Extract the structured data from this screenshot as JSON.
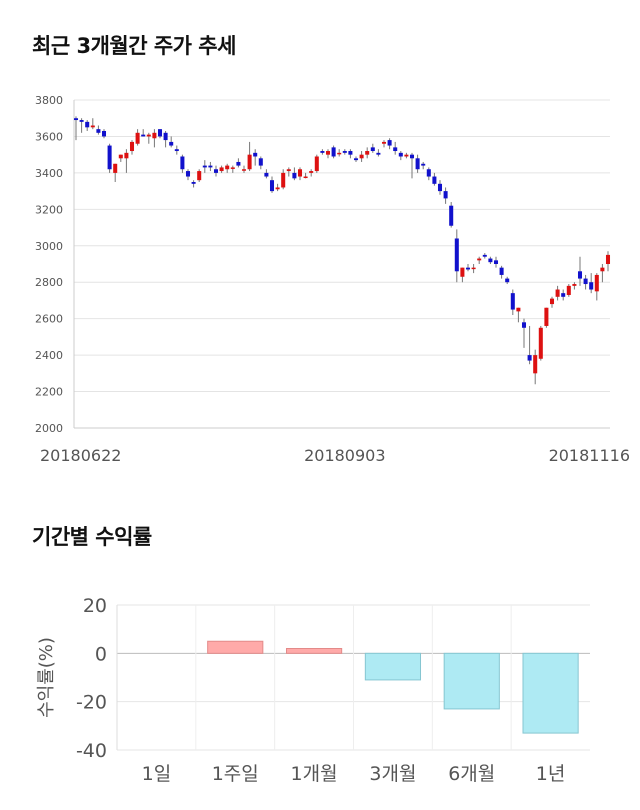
{
  "headings": {
    "price_trend": "최근 3개월간 주가 추세",
    "period_returns": "기간별 수익률"
  },
  "chart_data": [
    {
      "type": "candlestick",
      "ylim": [
        2000,
        3800
      ],
      "y_ticks": [
        "3800",
        "3600",
        "3400",
        "3200",
        "3000",
        "2800",
        "2600",
        "2400",
        "2200",
        "2000"
      ],
      "x_tick_labels": [
        {
          "label": "20180622",
          "index": 0
        },
        {
          "label": "20180903",
          "index": 48
        },
        {
          "label": "20181116",
          "index": 100
        }
      ],
      "grid": true,
      "up_color": "#dd1111",
      "down_color": "#1111cc",
      "candles": [
        [
          3700,
          3710,
          3580,
          3690
        ],
        [
          3690,
          3700,
          3620,
          3680
        ],
        [
          3680,
          3690,
          3630,
          3650
        ],
        [
          3650,
          3700,
          3640,
          3660
        ],
        [
          3640,
          3660,
          3610,
          3620
        ],
        [
          3630,
          3640,
          3590,
          3600
        ],
        [
          3550,
          3560,
          3400,
          3420
        ],
        [
          3400,
          3450,
          3350,
          3450
        ],
        [
          3480,
          3500,
          3460,
          3500
        ],
        [
          3480,
          3530,
          3400,
          3510
        ],
        [
          3520,
          3580,
          3500,
          3570
        ],
        [
          3560,
          3640,
          3550,
          3620
        ],
        [
          3610,
          3640,
          3600,
          3600
        ],
        [
          3600,
          3620,
          3560,
          3610
        ],
        [
          3590,
          3640,
          3540,
          3620
        ],
        [
          3640,
          3640,
          3590,
          3600
        ],
        [
          3620,
          3630,
          3540,
          3580
        ],
        [
          3570,
          3600,
          3540,
          3550
        ],
        [
          3530,
          3550,
          3500,
          3520
        ],
        [
          3490,
          3500,
          3400,
          3420
        ],
        [
          3410,
          3420,
          3360,
          3380
        ],
        [
          3350,
          3360,
          3320,
          3340
        ],
        [
          3360,
          3420,
          3350,
          3410
        ],
        [
          3440,
          3470,
          3400,
          3430
        ],
        [
          3440,
          3460,
          3410,
          3430
        ],
        [
          3420,
          3440,
          3380,
          3400
        ],
        [
          3410,
          3440,
          3400,
          3430
        ],
        [
          3420,
          3450,
          3400,
          3440
        ],
        [
          3430,
          3440,
          3400,
          3430
        ],
        [
          3460,
          3480,
          3430,
          3440
        ],
        [
          3420,
          3440,
          3400,
          3420
        ],
        [
          3420,
          3570,
          3410,
          3500
        ],
        [
          3510,
          3530,
          3440,
          3490
        ],
        [
          3480,
          3490,
          3420,
          3440
        ],
        [
          3400,
          3420,
          3370,
          3380
        ],
        [
          3360,
          3380,
          3290,
          3300
        ],
        [
          3310,
          3340,
          3300,
          3320
        ],
        [
          3320,
          3420,
          3310,
          3400
        ],
        [
          3410,
          3430,
          3380,
          3420
        ],
        [
          3400,
          3430,
          3360,
          3370
        ],
        [
          3380,
          3430,
          3360,
          3420
        ],
        [
          3380,
          3400,
          3370,
          3380
        ],
        [
          3400,
          3420,
          3380,
          3410
        ],
        [
          3410,
          3500,
          3400,
          3490
        ],
        [
          3520,
          3530,
          3500,
          3510
        ],
        [
          3500,
          3530,
          3480,
          3520
        ],
        [
          3540,
          3550,
          3480,
          3490
        ],
        [
          3510,
          3530,
          3490,
          3510
        ],
        [
          3520,
          3530,
          3500,
          3510
        ],
        [
          3520,
          3530,
          3480,
          3500
        ],
        [
          3480,
          3490,
          3460,
          3470
        ],
        [
          3480,
          3520,
          3460,
          3500
        ],
        [
          3500,
          3540,
          3480,
          3520
        ],
        [
          3540,
          3560,
          3510,
          3520
        ],
        [
          3510,
          3530,
          3490,
          3500
        ],
        [
          3560,
          3580,
          3540,
          3570
        ],
        [
          3580,
          3590,
          3530,
          3550
        ],
        [
          3540,
          3570,
          3500,
          3520
        ],
        [
          3510,
          3520,
          3470,
          3490
        ],
        [
          3490,
          3510,
          3480,
          3500
        ],
        [
          3500,
          3510,
          3370,
          3480
        ],
        [
          3480,
          3500,
          3400,
          3420
        ],
        [
          3450,
          3460,
          3420,
          3440
        ],
        [
          3420,
          3430,
          3360,
          3380
        ],
        [
          3380,
          3400,
          3330,
          3340
        ],
        [
          3340,
          3360,
          3280,
          3300
        ],
        [
          3300,
          3320,
          3230,
          3260
        ],
        [
          3220,
          3240,
          3100,
          3110
        ],
        [
          3040,
          3090,
          2800,
          2860
        ],
        [
          2830,
          2880,
          2800,
          2880
        ],
        [
          2880,
          2900,
          2860,
          2870
        ],
        [
          2880,
          2900,
          2850,
          2880
        ],
        [
          2920,
          2940,
          2900,
          2930
        ],
        [
          2950,
          2960,
          2930,
          2940
        ],
        [
          2930,
          2940,
          2900,
          2910
        ],
        [
          2920,
          2940,
          2880,
          2900
        ],
        [
          2880,
          2890,
          2820,
          2840
        ],
        [
          2820,
          2830,
          2790,
          2800
        ],
        [
          2740,
          2760,
          2620,
          2650
        ],
        [
          2640,
          2660,
          2580,
          2660
        ],
        [
          2580,
          2600,
          2440,
          2550
        ],
        [
          2400,
          2560,
          2350,
          2370
        ],
        [
          2300,
          2430,
          2240,
          2400
        ],
        [
          2380,
          2560,
          2370,
          2550
        ],
        [
          2560,
          2660,
          2550,
          2660
        ],
        [
          2680,
          2720,
          2660,
          2710
        ],
        [
          2720,
          2780,
          2700,
          2760
        ],
        [
          2740,
          2760,
          2700,
          2720
        ],
        [
          2730,
          2790,
          2720,
          2780
        ],
        [
          2780,
          2800,
          2760,
          2790
        ],
        [
          2860,
          2940,
          2780,
          2820
        ],
        [
          2820,
          2840,
          2760,
          2790
        ],
        [
          2800,
          2850,
          2740,
          2760
        ],
        [
          2750,
          2850,
          2700,
          2840
        ],
        [
          2860,
          2900,
          2800,
          2880
        ],
        [
          2900,
          2970,
          2860,
          2950
        ]
      ]
    },
    {
      "type": "bar",
      "ylabel": "수익률(%)",
      "ylim": [
        -40,
        20
      ],
      "y_ticks": [
        "20",
        "0",
        "-20",
        "-40"
      ],
      "categories": [
        "1일",
        "1주일",
        "1개월",
        "3개월",
        "6개월",
        "1년"
      ],
      "values": [
        0,
        5,
        2,
        -11,
        -23,
        -33
      ],
      "colors": {
        "positive_fill": "#ffaaa9",
        "positive_stroke": "#e38a89",
        "negative_fill": "#aeeaf3",
        "negative_stroke": "#86c6d1"
      },
      "grid": true
    }
  ]
}
